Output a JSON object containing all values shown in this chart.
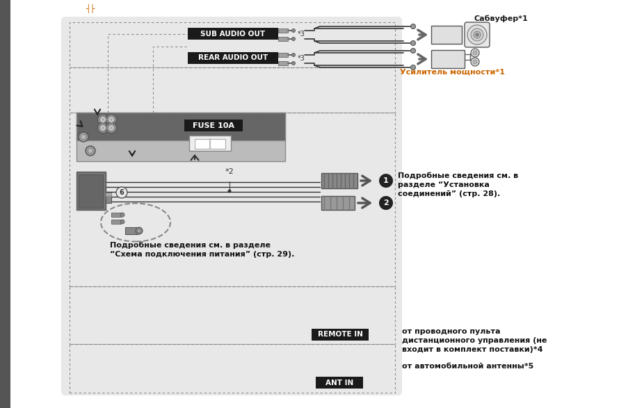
{
  "page_bg": "#ffffff",
  "diagram_bg": "#e8e8e8",
  "unit_light_bg": "#cccccc",
  "unit_dark_bg": "#666666",
  "label_bg": "#1a1a1a",
  "connector_bg": "#777777",
  "connector2_bg": "#999999",
  "wire_color": "#222222",
  "dotted_color": "#888888",
  "arrow_color": "#555555",
  "orange_text": "#cc6600",
  "black_text": "#111111",
  "left_strip_color": "#555555",
  "labels": {
    "sub_audio": "SUB AUDIO OUT",
    "rear_audio": "REAR AUDIO OUT",
    "fuse": "FUSE 10A",
    "remote": "REMOTE IN",
    "ant": "ANT IN",
    "subwoofer": "Сабвуфер*1",
    "amplifier": "Усилитель мощности*1",
    "note1": "Подробные сведения см. в\nразделе “Установка\nсоединений” (стр. 28).",
    "note2": "Подробные сведения см. в разделе\n“Схема подключения питания” (стр. 29).",
    "note3": "от проводного пульта\nдистанционного управления (не\nвходит в комплект поставки)*4",
    "note4": "от автомобильной антенны*5"
  }
}
